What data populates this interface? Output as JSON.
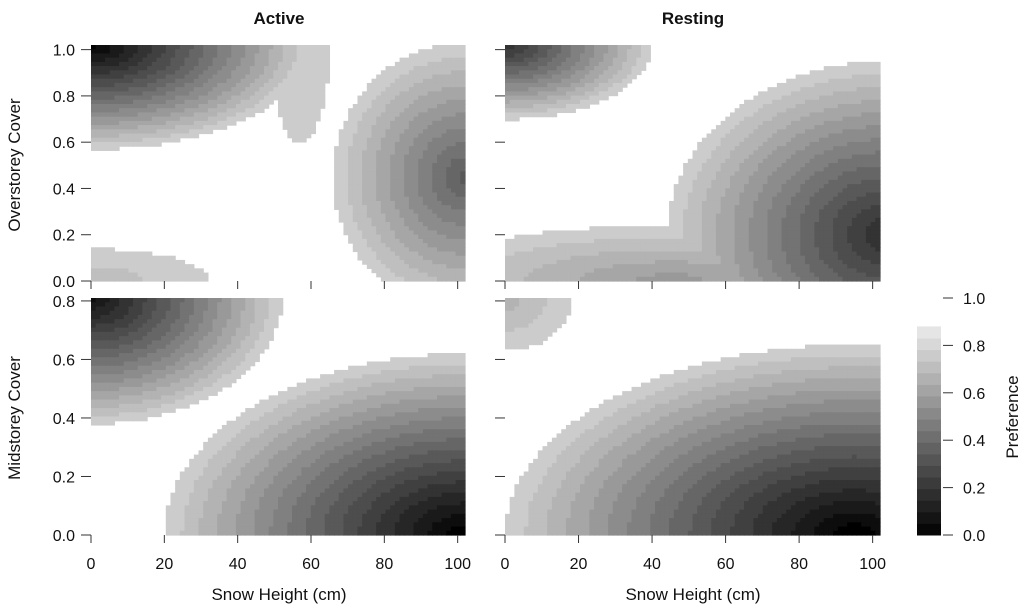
{
  "chart_data": {
    "type": "heatmap",
    "panel_titles": [
      "Active",
      "Resting"
    ],
    "xlabel": "Snow Height (cm)",
    "xlim": [
      0,
      102
    ],
    "x_ticks": [
      "0",
      "20",
      "40",
      "60",
      "80",
      "100"
    ],
    "rows": [
      {
        "ylabel": "Overstorey Cover",
        "ylim": [
          0,
          1.02
        ],
        "y_ticks": [
          "0.0",
          "0.2",
          "0.4",
          "0.6",
          "0.8",
          "1.0"
        ]
      },
      {
        "ylabel": "Midstorey Cover",
        "ylim": [
          0,
          0.81
        ],
        "y_ticks": [
          "0.0",
          "0.2",
          "0.4",
          "0.6",
          "0.8"
        ]
      }
    ],
    "panels": [
      {
        "behaviour": "Active",
        "cover": "Overstorey",
        "features": [
          {
            "center": [
              0,
              1.02
            ],
            "radius": [
              60,
              0.45
            ],
            "peak": 0.02,
            "edge": 0.85
          },
          {
            "center": [
              102,
              0.45
            ],
            "radius": [
              36,
              0.58
            ],
            "peak": 0.38,
            "edge": 0.85
          },
          {
            "center": [
              0,
              0.0
            ],
            "radius": [
              32,
              0.14
            ],
            "peak": 0.76,
            "edge": 0.85
          },
          {
            "center": [
              57,
              1.02
            ],
            "radius": [
              8,
              0.42
            ],
            "peak": 0.8,
            "edge": 0.85
          }
        ]
      },
      {
        "behaviour": "Resting",
        "cover": "Overstorey",
        "features": [
          {
            "center": [
              0,
              1.02
            ],
            "radius": [
              40,
              0.32
            ],
            "peak": 0.2,
            "edge": 0.85
          },
          {
            "center": [
              104,
              0.2
            ],
            "radius": [
              60,
              0.75
            ],
            "peak": 0.18,
            "edge": 0.85
          },
          {
            "center": [
              45,
              0.0
            ],
            "radius": [
              70,
              0.24
            ],
            "peak": 0.62,
            "edge": 0.85
          }
        ]
      },
      {
        "behaviour": "Active",
        "cover": "Midstorey",
        "features": [
          {
            "center": [
              0,
              0.81
            ],
            "radius": [
              52,
              0.43
            ],
            "peak": 0.08,
            "edge": 0.85
          },
          {
            "center": [
              102,
              0.0
            ],
            "radius": [
              82,
              0.62
            ],
            "peak": 0.0,
            "edge": 0.85
          }
        ]
      },
      {
        "behaviour": "Resting",
        "cover": "Midstorey",
        "features": [
          {
            "center": [
              0,
              0.81
            ],
            "radius": [
              18,
              0.18
            ],
            "peak": 0.72,
            "edge": 0.85
          },
          {
            "center": [
              95,
              0.0
            ],
            "radius": [
              95,
              0.65
            ],
            "peak": 0.0,
            "edge": 0.85
          }
        ]
      }
    ],
    "legend": {
      "title": "Preference",
      "range": [
        0,
        1
      ],
      "ticks": [
        "0.0",
        "0.2",
        "0.4",
        "0.6",
        "0.8",
        "1.0"
      ],
      "levels": 19
    },
    "colormap": {
      "low": "#000000",
      "high": "#ffffff"
    }
  }
}
